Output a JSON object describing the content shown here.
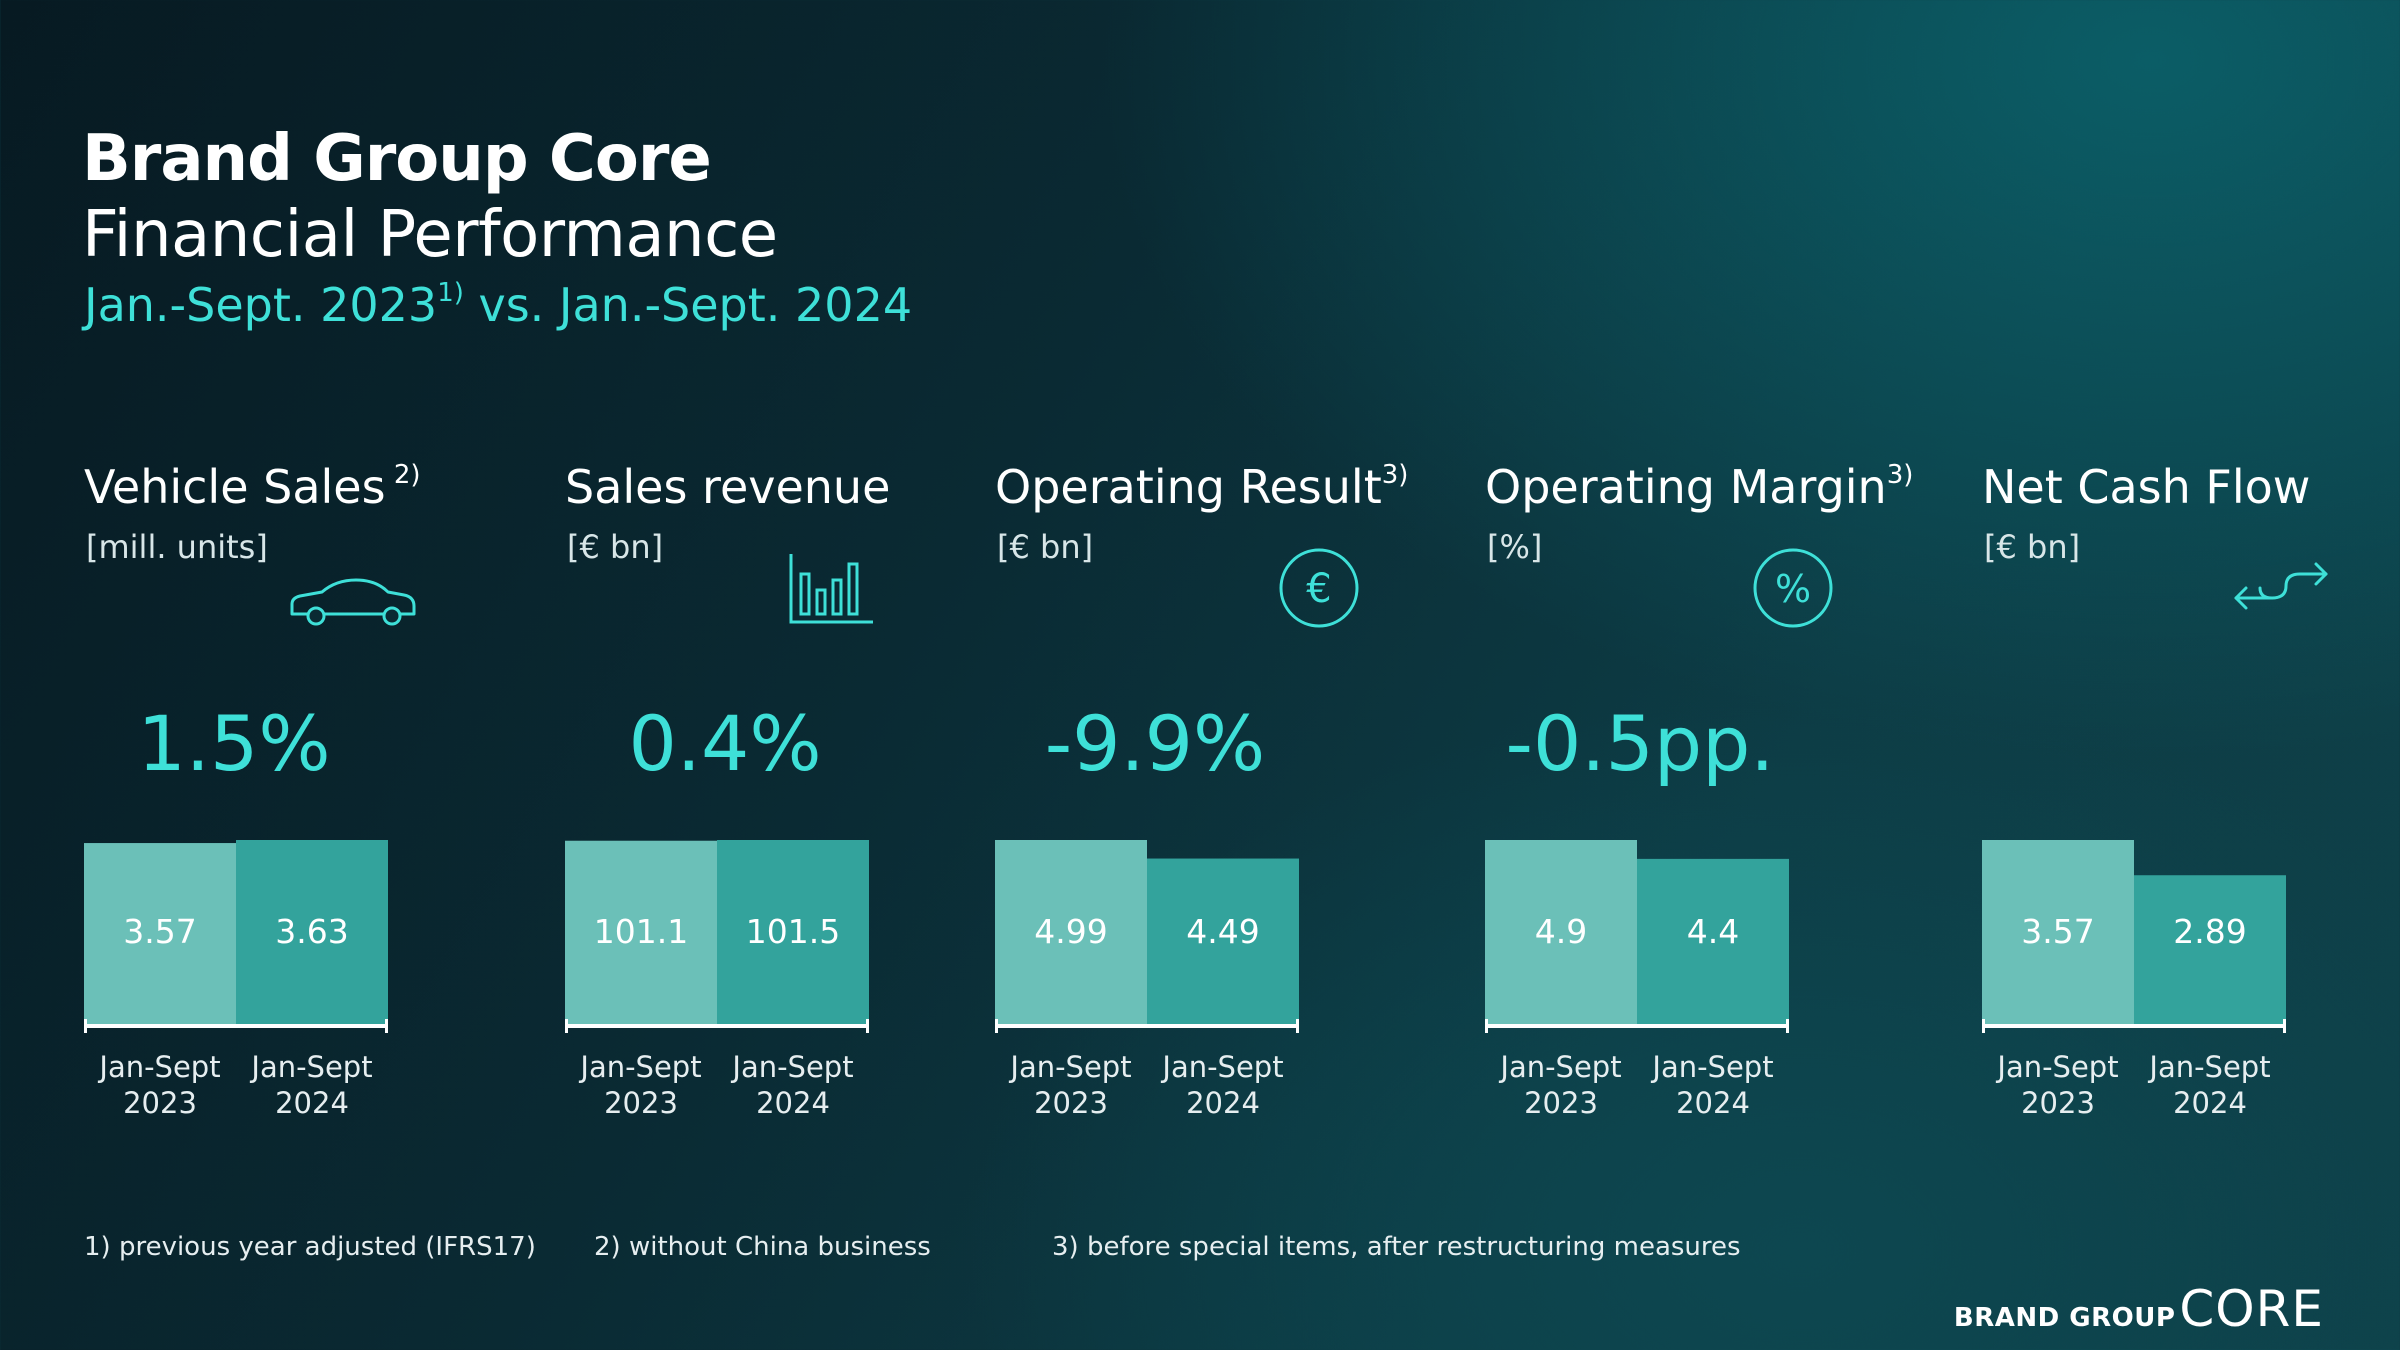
{
  "header": {
    "title": "Brand Group Core",
    "subtitle": "Financial Performance",
    "period_prefix": "Jan.-Sept. 2023",
    "period_sup": "1)",
    "period_suffix": " vs. Jan.-Sept. 2024"
  },
  "colors": {
    "bar_2023": "#6bc0b8",
    "bar_2024": "#33a39c",
    "accent": "#3ee0d8",
    "axis": "#ffffff"
  },
  "chart_data": [
    {
      "type": "bar",
      "title": "Vehicle Sales",
      "title_sup": " 2)",
      "ylabel": "[mill. units]",
      "icon": "car-icon",
      "change": "1.5%",
      "categories": [
        "Jan-Sept\n2023",
        "Jan-Sept\n2024"
      ],
      "values": [
        3.57,
        3.63
      ],
      "labels": [
        "3.57",
        "3.63"
      ]
    },
    {
      "type": "bar",
      "title": "Sales revenue",
      "title_sup": "",
      "ylabel": "[€ bn]",
      "icon": "bar-chart-icon",
      "change": "0.4%",
      "categories": [
        "Jan-Sept\n2023",
        "Jan-Sept\n2024"
      ],
      "values": [
        101.1,
        101.5
      ],
      "labels": [
        "101.1",
        "101.5"
      ]
    },
    {
      "type": "bar",
      "title": "Operating Result",
      "title_sup": "3)",
      "ylabel": "[€ bn]",
      "icon": "euro-icon",
      "change": "-9.9%",
      "categories": [
        "Jan-Sept\n2023",
        "Jan-Sept\n2024"
      ],
      "values": [
        4.99,
        4.49
      ],
      "labels": [
        "4.99",
        "4.49"
      ]
    },
    {
      "type": "bar",
      "title": "Operating Margin",
      "title_sup": "3)",
      "ylabel": "[%]",
      "icon": "percent-icon",
      "change": "-0.5pp.",
      "categories": [
        "Jan-Sept\n2023",
        "Jan-Sept\n2024"
      ],
      "values": [
        4.9,
        4.4
      ],
      "labels": [
        "4.9",
        "4.4"
      ]
    },
    {
      "type": "bar",
      "title": "Net Cash Flow",
      "title_sup": "",
      "ylabel": "[€ bn]",
      "icon": "cash-flow-icon",
      "change": "",
      "categories": [
        "Jan-Sept\n2023",
        "Jan-Sept\n2024"
      ],
      "values": [
        3.57,
        2.89
      ],
      "labels": [
        "3.57",
        "2.89"
      ]
    }
  ],
  "footnotes": [
    "1) previous year adjusted (IFRS17)",
    "2) without China business",
    "3) before special items, after restructuring measures"
  ],
  "brand": {
    "prefix": "BRAND GROUP",
    "name": "CORE"
  }
}
